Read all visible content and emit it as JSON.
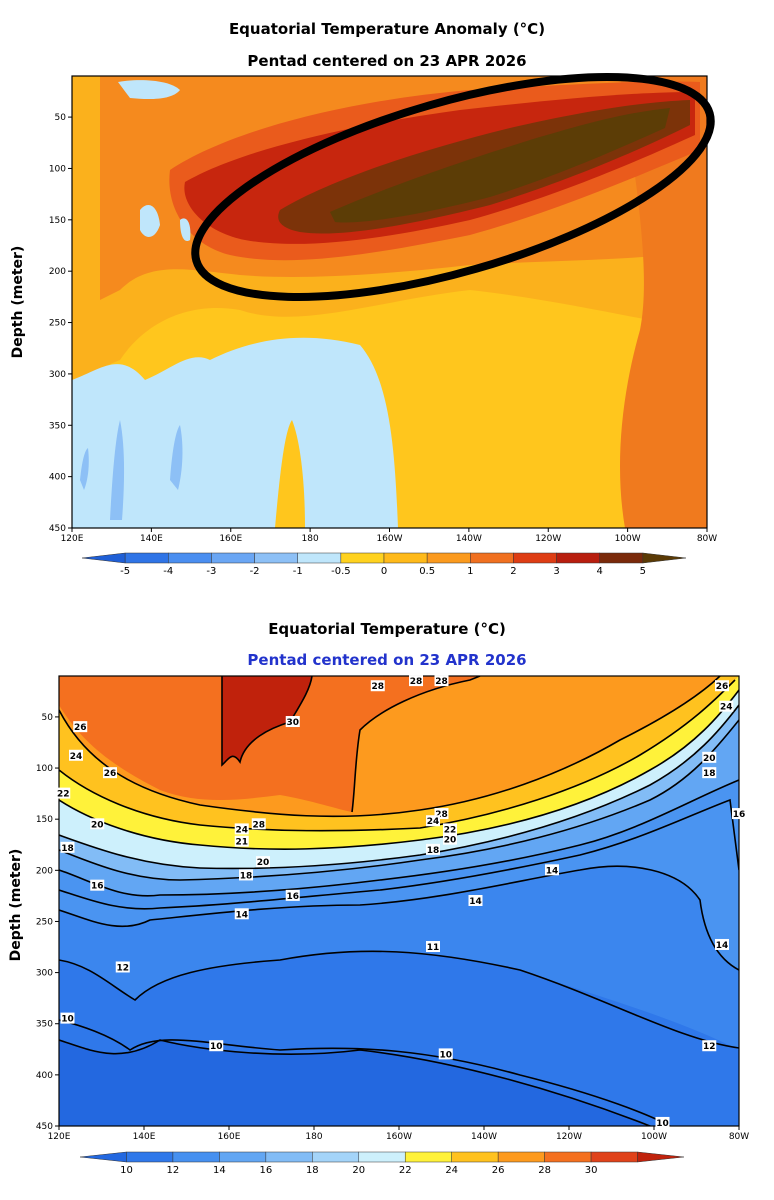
{
  "chart_data": [
    {
      "type": "heatmap",
      "title": "Equatorial Temperature Anomaly (°C)",
      "subtitle": "Pentad centered on 23 APR 2026",
      "ylabel": "Depth (meter)",
      "xlabel": "",
      "x_ticks": [
        "120E",
        "140E",
        "160E",
        "180",
        "160W",
        "140W",
        "120W",
        "100W",
        "80W"
      ],
      "y_ticks": [
        50,
        100,
        150,
        200,
        250,
        300,
        350,
        400,
        450
      ],
      "ylim": [
        450,
        10
      ],
      "colorbar_labels": [
        "-5",
        "-4",
        "-3",
        "-2",
        "-1",
        "-0.5",
        "0",
        "0.5",
        "1",
        "2",
        "3",
        "4",
        "5"
      ],
      "colorbar_colors": [
        "#1f5fd6",
        "#2f74e6",
        "#4a8ef0",
        "#6aa6f4",
        "#8dc0f6",
        "#bfe6fb",
        "#ffd21f",
        "#ffba1a",
        "#fb9a1e",
        "#f07020",
        "#de3d14",
        "#b81e0e",
        "#7a2a0a",
        "#5a3a05"
      ],
      "annotation": "black ellipse around strongest warm anomaly (160E–90W, 50–200 m)"
    },
    {
      "type": "heatmap",
      "title": "Equatorial Temperature (°C)",
      "subtitle": "Pentad centered on 23 APR 2026",
      "ylabel": "Depth (meter)",
      "xlabel": "",
      "x_ticks": [
        "120E",
        "140E",
        "160E",
        "180",
        "160W",
        "140W",
        "120W",
        "100W",
        "80W"
      ],
      "y_ticks": [
        50,
        100,
        150,
        200,
        250,
        300,
        350,
        400,
        450
      ],
      "ylim": [
        450,
        10
      ],
      "colorbar_labels": [
        "10",
        "12",
        "14",
        "16",
        "18",
        "20",
        "22",
        "24",
        "26",
        "28",
        "30"
      ],
      "colorbar_colors": [
        "#2368e0",
        "#2f78ea",
        "#4690f0",
        "#62a6f3",
        "#82bcf6",
        "#a4d4f9",
        "#cdf0fc",
        "#fff23a",
        "#ffc21f",
        "#fd9a1e",
        "#f4701f",
        "#e0421a",
        "#c0220c"
      ],
      "contour_labels": [
        {
          "value": "30",
          "lon": "175E",
          "depth": 55
        },
        {
          "value": "28",
          "lon": "167E",
          "depth": 155
        },
        {
          "value": "28",
          "lon": "150W",
          "depth": 145
        },
        {
          "value": "28",
          "lon": "165W",
          "depth": 20
        },
        {
          "value": "26",
          "lon": "125E",
          "depth": 60
        },
        {
          "value": "26",
          "lon": "132E",
          "depth": 105
        },
        {
          "value": "24",
          "lon": "124E",
          "depth": 88
        },
        {
          "value": "24",
          "lon": "163E",
          "depth": 160
        },
        {
          "value": "24",
          "lon": "152W",
          "depth": 152
        },
        {
          "value": "22",
          "lon": "121E",
          "depth": 125
        },
        {
          "value": "22",
          "lon": "148W",
          "depth": 160
        },
        {
          "value": "21",
          "lon": "163E",
          "depth": 172
        },
        {
          "value": "20",
          "lon": "129E",
          "depth": 155
        },
        {
          "value": "20",
          "lon": "168E",
          "depth": 192
        },
        {
          "value": "20",
          "lon": "148W",
          "depth": 170
        },
        {
          "value": "20",
          "lon": "87W",
          "depth": 90
        },
        {
          "value": "18",
          "lon": "122E",
          "depth": 178
        },
        {
          "value": "18",
          "lon": "164E",
          "depth": 205
        },
        {
          "value": "18",
          "lon": "152W",
          "depth": 180
        },
        {
          "value": "18",
          "lon": "87W",
          "depth": 105
        },
        {
          "value": "16",
          "lon": "129E",
          "depth": 215
        },
        {
          "value": "16",
          "lon": "175E",
          "depth": 225
        },
        {
          "value": "16",
          "lon": "80W",
          "depth": 145
        },
        {
          "value": "14",
          "lon": "163E",
          "depth": 243
        },
        {
          "value": "14",
          "lon": "142W",
          "depth": 230
        },
        {
          "value": "14",
          "lon": "124W",
          "depth": 200
        },
        {
          "value": "14",
          "lon": "84W",
          "depth": 273
        },
        {
          "value": "12",
          "lon": "135E",
          "depth": 295
        },
        {
          "value": "11",
          "lon": "152W",
          "depth": 275
        },
        {
          "value": "12",
          "lon": "87W",
          "depth": 372
        },
        {
          "value": "10",
          "lon": "122E",
          "depth": 345
        },
        {
          "value": "10",
          "lon": "157E",
          "depth": 372
        },
        {
          "value": "10",
          "lon": "149W",
          "depth": 380
        },
        {
          "value": "10",
          "lon": "98W",
          "depth": 447
        },
        {
          "value": "24",
          "lon": "83W",
          "depth": 40
        },
        {
          "value": "26",
          "lon": "84W",
          "depth": 20
        },
        {
          "value": "28",
          "lon": "156W",
          "depth": 15
        },
        {
          "value": "28",
          "lon": "150W",
          "depth": 15
        }
      ]
    }
  ]
}
